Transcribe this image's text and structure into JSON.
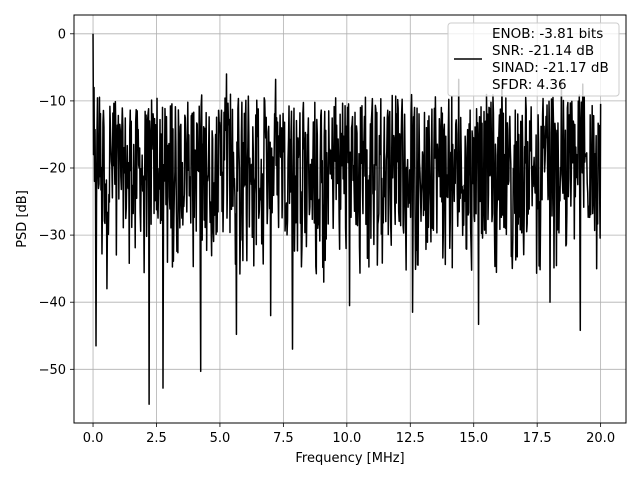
{
  "chart_data": {
    "type": "line",
    "xlabel": "Frequency [MHz]",
    "ylabel": "PSD [dB]",
    "xlim": [
      -0.75,
      21.0
    ],
    "ylim": [
      -58.0,
      2.8
    ],
    "xticks": [
      0.0,
      2.5,
      5.0,
      7.5,
      10.0,
      12.5,
      15.0,
      17.5,
      20.0
    ],
    "xtick_labels": [
      "0.0",
      "2.5",
      "5.0",
      "7.5",
      "10.0",
      "12.5",
      "15.0",
      "17.5",
      "20.0"
    ],
    "yticks": [
      0,
      -10,
      -20,
      -30,
      -40,
      -50
    ],
    "ytick_labels": [
      "0",
      "−10",
      "−20",
      "−30",
      "−40",
      "−50"
    ],
    "grid": true,
    "legend_position": "top-right",
    "series": [
      {
        "color": "#000000",
        "x_range": [
          0.0,
          20.0
        ],
        "points": 1024,
        "band_mean": -20.0,
        "band_low": -30.0,
        "band_high": -11.0,
        "features": [
          {
            "x": 0.0,
            "y": 0.0
          },
          {
            "x": 0.05,
            "y": -4.5
          },
          {
            "x": 0.12,
            "y": -46.5
          },
          {
            "x": 0.55,
            "y": -38.0
          },
          {
            "x": 2.2,
            "y": -55.2
          },
          {
            "x": 2.75,
            "y": -52.8
          },
          {
            "x": 4.25,
            "y": -50.3
          },
          {
            "x": 5.65,
            "y": -44.8
          },
          {
            "x": 7.0,
            "y": -42.0
          },
          {
            "x": 7.85,
            "y": -47.0
          },
          {
            "x": 9.1,
            "y": -37.0
          },
          {
            "x": 10.1,
            "y": -40.5
          },
          {
            "x": 12.6,
            "y": -41.5
          },
          {
            "x": 15.2,
            "y": -43.3
          },
          {
            "x": 18.0,
            "y": -40.0
          },
          {
            "x": 19.2,
            "y": -44.2
          },
          {
            "x": 5.25,
            "y": -6.0
          },
          {
            "x": 7.2,
            "y": -6.8
          },
          {
            "x": 14.4,
            "y": -6.8
          },
          {
            "x": 18.45,
            "y": -7.0
          },
          {
            "x": 19.3,
            "y": -7.5
          },
          {
            "x": 16.1,
            "y": -7.0
          }
        ]
      }
    ],
    "legend": {
      "entries": [
        "ENOB: -3.81 bits",
        "SNR: -21.14 dB",
        "SINAD: -21.17 dB",
        "SFDR: 4.36"
      ]
    }
  }
}
